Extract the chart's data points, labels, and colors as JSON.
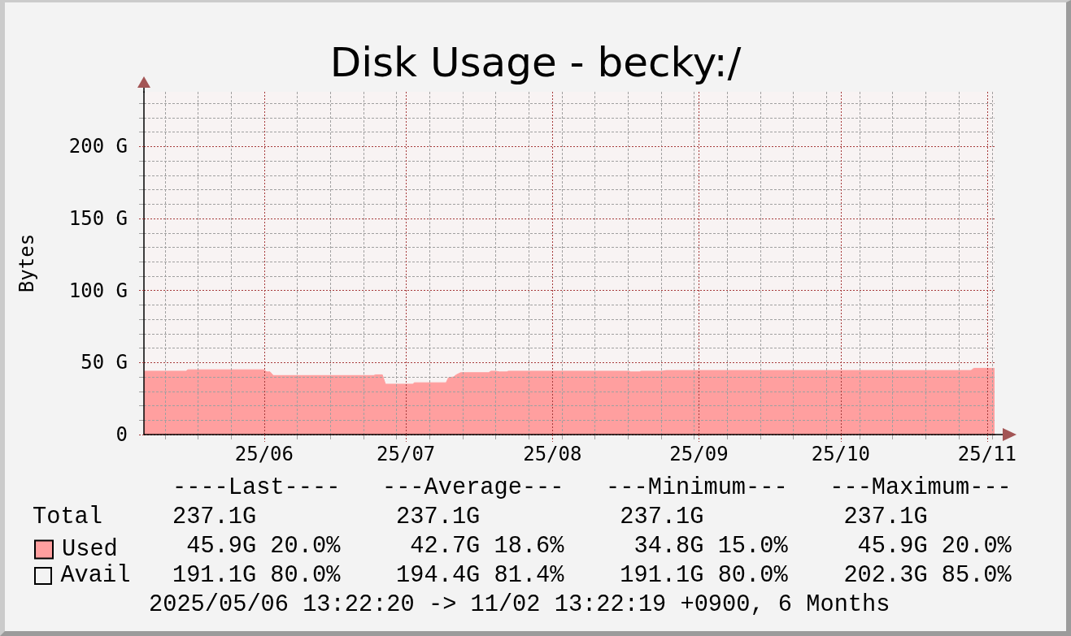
{
  "chart_data": {
    "type": "area",
    "title": "Disk Usage - becky:/",
    "ylabel": "Bytes",
    "x": [
      "2025-05-06T13:22",
      "2025-05-15T11:00",
      "2025-05-15T21:00",
      "2025-05-31T22:00",
      "2025-06-01T13:00",
      "2025-06-02T06:00",
      "2025-06-02T22:00",
      "2025-06-24T06:00",
      "2025-06-24T12:00",
      "2025-06-26T00:00",
      "2025-06-26T16:00",
      "2025-07-02T12:00",
      "2025-07-02T18:00",
      "2025-07-09T12:00",
      "2025-07-10T00:00",
      "2025-07-11T02:00",
      "2025-07-11T16:00",
      "2025-07-12T14:00",
      "2025-07-18T12:00",
      "2025-07-19T00:00",
      "2025-07-20T00:00",
      "2025-07-20T20:00",
      "2025-07-22T08:00",
      "2025-07-22T16:00",
      "2025-08-17T06:00",
      "2025-08-17T14:00",
      "2025-08-19T10:00",
      "2025-08-19T18:00",
      "2025-08-24T04:00",
      "2025-08-25T02:00",
      "2025-10-28T14:00",
      "2025-10-29T04:00",
      "2025-11-02T13:22"
    ],
    "series": [
      {
        "name": "Used",
        "color": "#ff9f9f",
        "values": [
          44,
          44,
          45,
          45,
          43.5,
          43.5,
          41,
          41,
          41.5,
          41.5,
          35,
          35,
          36,
          36,
          39.5,
          40,
          41.5,
          43,
          43,
          44,
          44,
          43.5,
          43.5,
          44,
          44,
          43.5,
          43.5,
          44,
          44,
          44.5,
          44.5,
          46,
          46
        ]
      }
    ],
    "xlim": [
      "2025-05-06T13:22",
      "2025-11-02T13:22"
    ],
    "xticks": [
      {
        "value": "2025-05-11",
        "label": null
      },
      {
        "value": "2025-05-18",
        "label": null
      },
      {
        "value": "2025-05-25",
        "label": null
      },
      {
        "value": "2025-06-01",
        "label": "25/06"
      },
      {
        "value": "2025-06-08",
        "label": null
      },
      {
        "value": "2025-06-15",
        "label": null
      },
      {
        "value": "2025-06-22",
        "label": null
      },
      {
        "value": "2025-06-29",
        "label": null
      },
      {
        "value": "2025-07-01",
        "label": "25/07"
      },
      {
        "value": "2025-07-06",
        "label": null
      },
      {
        "value": "2025-07-13",
        "label": null
      },
      {
        "value": "2025-07-20",
        "label": null
      },
      {
        "value": "2025-07-27",
        "label": null
      },
      {
        "value": "2025-08-01",
        "label": "25/08"
      },
      {
        "value": "2025-08-03",
        "label": null
      },
      {
        "value": "2025-08-10",
        "label": null
      },
      {
        "value": "2025-08-17",
        "label": null
      },
      {
        "value": "2025-08-24",
        "label": null
      },
      {
        "value": "2025-08-31",
        "label": null
      },
      {
        "value": "2025-09-01",
        "label": "25/09"
      },
      {
        "value": "2025-09-07",
        "label": null
      },
      {
        "value": "2025-09-14",
        "label": null
      },
      {
        "value": "2025-09-21",
        "label": null
      },
      {
        "value": "2025-09-28",
        "label": null
      },
      {
        "value": "2025-10-01",
        "label": "25/10"
      },
      {
        "value": "2025-10-05",
        "label": null
      },
      {
        "value": "2025-10-12",
        "label": null
      },
      {
        "value": "2025-10-19",
        "label": null
      },
      {
        "value": "2025-10-26",
        "label": null
      },
      {
        "value": "2025-11-01",
        "label": "25/11"
      },
      {
        "value": "2025-11-02",
        "label": null
      }
    ],
    "ylim": [
      0,
      238
    ],
    "yticks": [
      0,
      {
        "value": 10,
        "label": null
      },
      {
        "value": 20,
        "label": null
      },
      {
        "value": 30,
        "label": null
      },
      {
        "value": 40,
        "label": null
      },
      {
        "value": 50,
        "label": "50 G"
      },
      {
        "value": 60,
        "label": null
      },
      {
        "value": 70,
        "label": null
      },
      {
        "value": 80,
        "label": null
      },
      {
        "value": 90,
        "label": null
      },
      {
        "value": 100,
        "label": "100 G"
      },
      {
        "value": 110,
        "label": null
      },
      {
        "value": 120,
        "label": null
      },
      {
        "value": 130,
        "label": null
      },
      {
        "value": 140,
        "label": null
      },
      {
        "value": 150,
        "label": "150 G"
      },
      {
        "value": 160,
        "label": null
      },
      {
        "value": 170,
        "label": null
      },
      {
        "value": 180,
        "label": null
      },
      {
        "value": 190,
        "label": null
      },
      {
        "value": 200,
        "label": "200 G"
      },
      {
        "value": 210,
        "label": null
      },
      {
        "value": 220,
        "label": null
      },
      {
        "value": 230,
        "label": null
      }
    ],
    "grid": true,
    "legend": "bottom left",
    "annotations": [
      "----Last----   ---Average---   ---Minimum---   ---Maximum---",
      "Total     237.1G          237.1G          237.1G          237.1G",
      "45.9G 20.0%     42.7G 18.6%     34.8G 15.0%     45.9G 20.0%",
      "Avail   191.1G 80.0%    194.4G 81.4%    191.1G 80.0%    202.3G 85.0%",
      "2025/05/06 13:22:20 -> 11/02 13:22:19 +0900, 6 Months"
    ]
  }
}
